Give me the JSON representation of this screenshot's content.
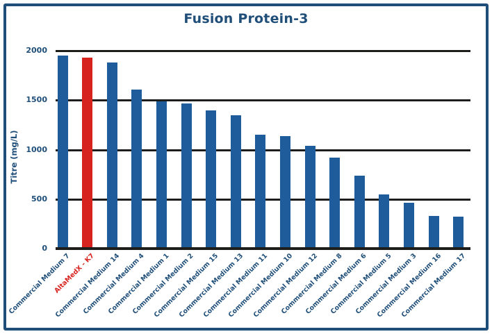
{
  "frame": {
    "border_color": "#1F4E79",
    "background_color": "#FFFFFF"
  },
  "chart_data": {
    "type": "bar",
    "title": "Fusion Protein-3",
    "xlabel": "",
    "ylabel": "Titre (mg/L)",
    "ylim": [
      0,
      2000
    ],
    "yticks": [
      0,
      500,
      1000,
      1500,
      2000
    ],
    "grid": "horizontal-black-lines",
    "legend": "none",
    "categories": [
      "Commercial Medium 7",
      "AltaMedX - K7",
      "Commercial Medium 14",
      "Commercial Medium 4",
      "Commercial Medium 1",
      "Commercial Medium 2",
      "Commercial Medium 15",
      "Commercial Medium 13",
      "Commercial Medium 11",
      "Commercial Medium 10",
      "Commercial Medium 12",
      "Commercial Medium 8",
      "Commercial Medium 6",
      "Commercial Medium 5",
      "Commercial Medium 3",
      "Commercial Medium 16",
      "Commercial Medium 17"
    ],
    "values": [
      1950,
      1930,
      1880,
      1610,
      1490,
      1470,
      1400,
      1350,
      1150,
      1140,
      1040,
      920,
      740,
      550,
      460,
      330,
      320
    ],
    "highlight_index": 1,
    "bar_color": "#1E5C9B",
    "highlight_color": "#D7231E",
    "category_label_color": "#1F4E79",
    "highlight_label_color": "#D7231E",
    "axis_text_color": "#1F4E79",
    "title_color": "#1F4E79",
    "gridline_color": "#1D1D1B"
  }
}
